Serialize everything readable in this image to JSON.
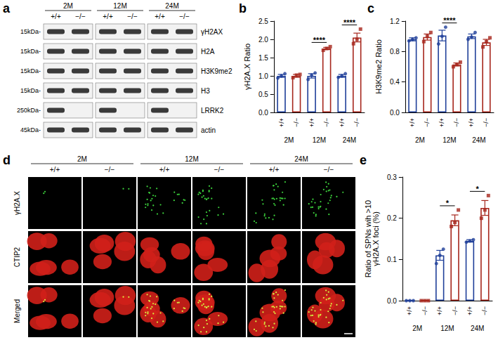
{
  "panel_labels": [
    "a",
    "b",
    "c",
    "d",
    "e"
  ],
  "blot": {
    "ages": [
      "2M",
      "12M",
      "24M"
    ],
    "genotypes": [
      "+/+",
      "−/−"
    ],
    "rows": [
      {
        "size": "15kDa-",
        "label": "γH2AX",
        "lanes": [
          true,
          true,
          true,
          true,
          true,
          true
        ]
      },
      {
        "size": "15kDa-",
        "label": "H2A",
        "lanes": [
          true,
          true,
          true,
          true,
          true,
          true
        ]
      },
      {
        "size": "15kDa-",
        "label": "H3K9me2",
        "lanes": [
          true,
          true,
          true,
          true,
          true,
          true
        ]
      },
      {
        "size": "15kDa-",
        "label": "H3",
        "lanes": [
          true,
          true,
          true,
          true,
          true,
          true
        ]
      },
      {
        "size": "250kDa-",
        "label": "LRRK2",
        "lanes": [
          true,
          false,
          true,
          false,
          true,
          false
        ]
      },
      {
        "size": "45kDa-",
        "label": "actin",
        "lanes": [
          true,
          true,
          true,
          true,
          true,
          true
        ]
      }
    ]
  },
  "chart_data": [
    {
      "type": "bar",
      "ylabel": "γH2A.X Ratio",
      "categories": [
        "+/+",
        "−/−",
        "+/+",
        "−/−",
        "+/+",
        "−/−"
      ],
      "groups": [
        "2M",
        "12M",
        "24M"
      ],
      "ylim": [
        0,
        2.5
      ],
      "yticks": [
        {
          "value": 0,
          "label": "0.0"
        },
        0.5,
        {
          "value": 1,
          "label": "1.0"
        },
        1.5,
        {
          "value": 2,
          "label": "2.0"
        },
        2.5
      ],
      "grid": false,
      "series": [
        {
          "color": "#1f3f99",
          "marker": "circle",
          "values": [
            1.0,
            null,
            1.0,
            null,
            1.0,
            null
          ],
          "errors": [
            0.04,
            null,
            0.06,
            null,
            0.04,
            null
          ],
          "points": [
            [
              0.94,
              1.0,
              1.06
            ],
            null,
            [
              0.9,
              1.02,
              1.08
            ],
            null,
            [
              0.96,
              1.0,
              1.06
            ],
            null
          ]
        },
        {
          "color": "#a6261c",
          "marker": "square",
          "values": [
            null,
            1.0,
            null,
            1.75,
            null,
            2.05
          ],
          "errors": [
            null,
            0.04,
            null,
            0.03,
            null,
            0.12
          ],
          "points": [
            null,
            [
              0.95,
              1.02,
              1.04
            ],
            null,
            [
              1.7,
              1.75,
              1.8
            ],
            null,
            [
              1.88,
              2.0,
              2.28
            ]
          ]
        }
      ],
      "annotations": [
        {
          "text": "****",
          "between": [
            2,
            3
          ]
        },
        {
          "text": "****",
          "between": [
            4,
            5
          ]
        }
      ]
    },
    {
      "type": "bar",
      "ylabel": "H3K9me2 Ratio",
      "categories": [
        "+/+",
        "−/−",
        "+/+",
        "−/−",
        "+/+",
        "−/−"
      ],
      "groups": [
        "2M",
        "12M",
        "24M"
      ],
      "ylim": [
        0,
        1.2
      ],
      "yticks": [
        {
          "value": 0,
          "label": "0.0"
        },
        0.4,
        0.8,
        1.2
      ],
      "grid": false,
      "series": [
        {
          "color": "#1f3f99",
          "marker": "circle",
          "values": [
            0.96,
            null,
            1.01,
            null,
            1.0,
            null
          ],
          "errors": [
            0.02,
            null,
            0.07,
            null,
            0.03,
            null
          ],
          "points": [
            [
              0.94,
              0.96,
              0.98
            ],
            null,
            [
              0.9,
              1.0,
              1.12
            ],
            null,
            [
              0.96,
              0.99,
              1.05
            ],
            null
          ]
        },
        {
          "color": "#a6261c",
          "marker": "square",
          "values": [
            null,
            0.99,
            null,
            0.63,
            null,
            0.92
          ],
          "errors": [
            null,
            0.04,
            null,
            0.02,
            null,
            0.04
          ],
          "points": [
            null,
            [
              0.93,
              1.0,
              1.05
            ],
            null,
            [
              0.6,
              0.63,
              0.66
            ],
            null,
            [
              0.86,
              0.93,
              0.98
            ]
          ]
        }
      ],
      "annotations": [
        {
          "text": "****",
          "between": [
            2,
            3
          ]
        }
      ]
    },
    {
      "type": "bar",
      "ylabel": "Ratio of SPNs wih >10\nγH2A.X foci (%)",
      "categories": [
        "+/+",
        "−/−",
        "+/+",
        "−/−",
        "+/+",
        "−/−"
      ],
      "groups": [
        "2M",
        "12M",
        "24M"
      ],
      "ylim": [
        0,
        0.3
      ],
      "yticks": [
        {
          "value": 0,
          "label": "0.0"
        },
        0.1,
        0.2,
        0.3
      ],
      "grid": false,
      "series": [
        {
          "color": "#1f3f99",
          "marker": "circle",
          "values": [
            0,
            null,
            0.11,
            null,
            0.145,
            null
          ],
          "errors": [
            0,
            null,
            0.012,
            null,
            0.003,
            null
          ],
          "points": [
            [
              0,
              0,
              0
            ],
            null,
            [
              0.09,
              0.11,
              0.125
            ],
            null,
            [
              0.142,
              0.145,
              0.148
            ],
            null
          ]
        },
        {
          "color": "#a6261c",
          "marker": "square",
          "values": [
            null,
            0,
            null,
            0.195,
            null,
            0.225
          ],
          "errors": [
            null,
            0,
            null,
            0.013,
            null,
            0.018
          ],
          "points": [
            null,
            [
              0,
              0,
              0
            ],
            null,
            [
              0.18,
              0.19,
              0.22
            ],
            null,
            [
              0.2,
              0.22,
              0.255
            ]
          ]
        }
      ],
      "annotations": [
        {
          "text": "*",
          "between": [
            2,
            3
          ]
        },
        {
          "text": "*",
          "between": [
            4,
            5
          ]
        }
      ]
    }
  ],
  "micrographs": {
    "ages": [
      "2M",
      "12M",
      "24M"
    ],
    "genotypes": [
      "+/+",
      "−/−"
    ],
    "channels": [
      "γH2A.X",
      "CTIP2",
      "Merged"
    ]
  }
}
